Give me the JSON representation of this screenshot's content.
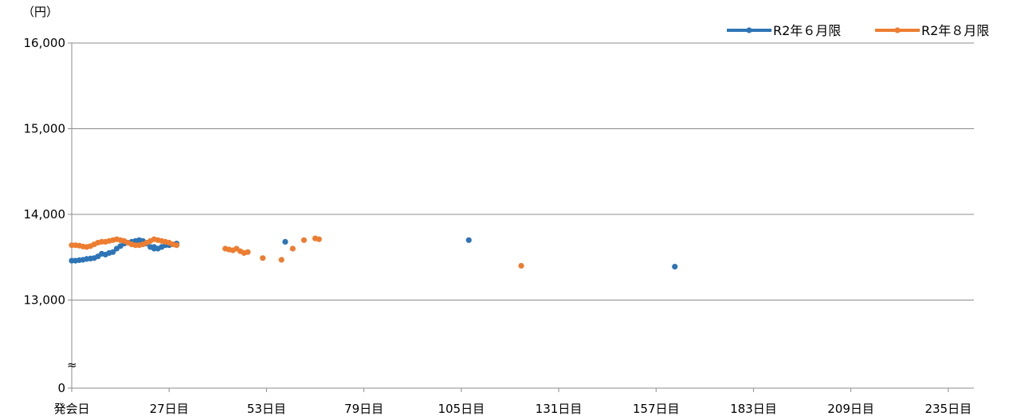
{
  "chart_data": {
    "type": "scatter",
    "y_unit": "（円）",
    "break_mark": "≈",
    "xlim": [
      0,
      244
    ],
    "ylim_upper": [
      12000,
      16000
    ],
    "ylim_lower": [
      0,
      0
    ],
    "y_ticks": [
      {
        "value": 16000,
        "label": "16,000"
      },
      {
        "value": 15000,
        "label": "15,000"
      },
      {
        "value": 14000,
        "label": "14,000"
      },
      {
        "value": 13000,
        "label": "13,000"
      },
      {
        "value": 0,
        "label": "0"
      }
    ],
    "x_ticks": [
      {
        "value": 1,
        "label": "発会日"
      },
      {
        "value": 27,
        "label": "27日目"
      },
      {
        "value": 53,
        "label": "53日目"
      },
      {
        "value": 79,
        "label": "79日目"
      },
      {
        "value": 105,
        "label": "105日目"
      },
      {
        "value": 131,
        "label": "131日目"
      },
      {
        "value": 157,
        "label": "157日目"
      },
      {
        "value": 183,
        "label": "183日目"
      },
      {
        "value": 209,
        "label": "209日目"
      },
      {
        "value": 235,
        "label": "235日目"
      }
    ],
    "grid": true,
    "legend_position": "top-right",
    "series": [
      {
        "name": "R2年６月限",
        "color": "#2E75B6",
        "points": [
          [
            1,
            13460
          ],
          [
            2,
            13460
          ],
          [
            3,
            13465
          ],
          [
            4,
            13470
          ],
          [
            5,
            13480
          ],
          [
            6,
            13485
          ],
          [
            7,
            13490
          ],
          [
            8,
            13510
          ],
          [
            9,
            13540
          ],
          [
            10,
            13530
          ],
          [
            11,
            13550
          ],
          [
            12,
            13560
          ],
          [
            13,
            13600
          ],
          [
            14,
            13630
          ],
          [
            15,
            13660
          ],
          [
            16,
            13670
          ],
          [
            17,
            13680
          ],
          [
            18,
            13690
          ],
          [
            19,
            13700
          ],
          [
            20,
            13690
          ],
          [
            21,
            13660
          ],
          [
            22,
            13620
          ],
          [
            23,
            13600
          ],
          [
            24,
            13600
          ],
          [
            25,
            13620
          ],
          [
            26,
            13640
          ],
          [
            27,
            13640
          ],
          [
            28,
            13650
          ],
          [
            29,
            13660
          ],
          [
            23,
            13620
          ],
          [
            58,
            13680
          ],
          [
            107,
            13700
          ],
          [
            162,
            13390
          ]
        ]
      },
      {
        "name": "R2年８月限",
        "color": "#ED7D31",
        "points": [
          [
            1,
            13640
          ],
          [
            2,
            13640
          ],
          [
            3,
            13635
          ],
          [
            4,
            13625
          ],
          [
            5,
            13620
          ],
          [
            6,
            13630
          ],
          [
            7,
            13650
          ],
          [
            8,
            13670
          ],
          [
            9,
            13680
          ],
          [
            10,
            13680
          ],
          [
            11,
            13690
          ],
          [
            12,
            13700
          ],
          [
            13,
            13710
          ],
          [
            14,
            13700
          ],
          [
            15,
            13690
          ],
          [
            16,
            13670
          ],
          [
            17,
            13650
          ],
          [
            18,
            13640
          ],
          [
            19,
            13640
          ],
          [
            20,
            13650
          ],
          [
            21,
            13670
          ],
          [
            22,
            13690
          ],
          [
            23,
            13710
          ],
          [
            24,
            13700
          ],
          [
            25,
            13690
          ],
          [
            26,
            13680
          ],
          [
            27,
            13670
          ],
          [
            28,
            13650
          ],
          [
            29,
            13640
          ],
          [
            42,
            13600
          ],
          [
            43,
            13590
          ],
          [
            44,
            13580
          ],
          [
            45,
            13600
          ],
          [
            46,
            13570
          ],
          [
            47,
            13550
          ],
          [
            48,
            13560
          ],
          [
            52,
            13490
          ],
          [
            57,
            13470
          ],
          [
            60,
            13600
          ],
          [
            63,
            13700
          ],
          [
            66,
            13720
          ],
          [
            67,
            13710
          ],
          [
            121,
            13400
          ]
        ]
      }
    ]
  }
}
